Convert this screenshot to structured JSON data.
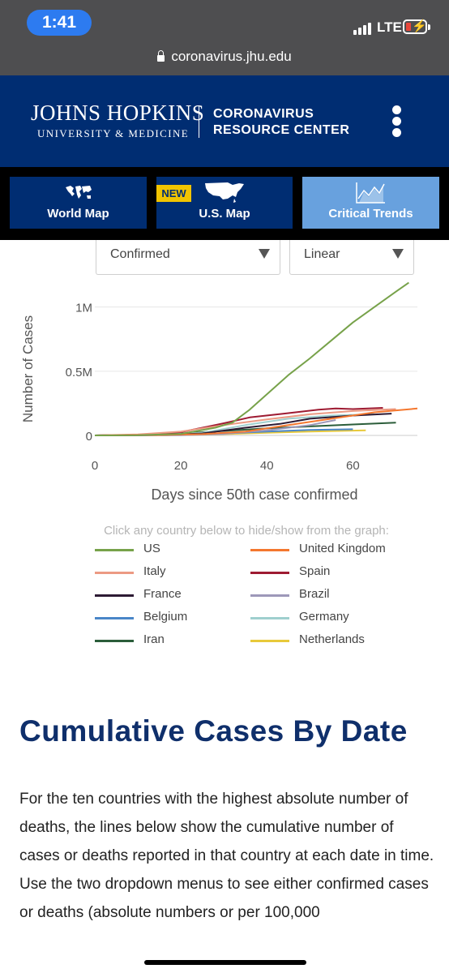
{
  "status_bar": {
    "time": "1:41",
    "network": "LTE",
    "url": "coronavirus.jhu.edu"
  },
  "header": {
    "logo_line1": "JOHNS HOPKINS",
    "logo_line2": "UNIVERSITY & MEDICINE",
    "site_title_line1": "CORONAVIRUS",
    "site_title_line2": "RESOURCE CENTER",
    "menu_icon": "kebab-menu-icon"
  },
  "nav": {
    "tabs": [
      {
        "label": "World Map",
        "icon": "world-map-icon",
        "badge": ""
      },
      {
        "label": "U.S. Map",
        "icon": "us-map-icon",
        "badge": "NEW"
      },
      {
        "label": "Critical Trends",
        "icon": "trend-chart-icon",
        "badge": ""
      }
    ]
  },
  "controls": {
    "metric_selected": "Confirmed",
    "scale_selected": "Linear"
  },
  "chart_data": {
    "type": "line",
    "xlabel": "Days since 50th case confirmed",
    "ylabel": "Number of Cases",
    "x_ticks": [
      "0",
      "20",
      "40",
      "60"
    ],
    "y_ticks": [
      "0",
      "0.5M",
      "1M"
    ],
    "xlim": [
      0,
      75
    ],
    "ylim": [
      0,
      1200000
    ],
    "grid": "horizontal",
    "helper_text": "Click any country below to hide/show from the graph:",
    "series": [
      {
        "name": "US",
        "color": "#77a24a",
        "x": [
          0,
          10,
          20,
          28,
          32,
          36,
          40,
          45,
          50,
          55,
          60,
          65,
          70,
          73
        ],
        "y": [
          0,
          2000,
          12000,
          60000,
          100000,
          200000,
          320000,
          470000,
          600000,
          740000,
          880000,
          1000000,
          1120000,
          1190000
        ]
      },
      {
        "name": "United Kingdom",
        "color": "#f4772e",
        "x": [
          0,
          15,
          25,
          35,
          45,
          55,
          65,
          75
        ],
        "y": [
          0,
          3000,
          10000,
          30000,
          80000,
          130000,
          180000,
          210000
        ]
      },
      {
        "name": "Italy",
        "color": "#ec9a83",
        "x": [
          0,
          10,
          20,
          30,
          40,
          50,
          60,
          70
        ],
        "y": [
          0,
          8000,
          30000,
          80000,
          125000,
          165000,
          190000,
          205000
        ]
      },
      {
        "name": "Spain",
        "color": "#9e1b32",
        "x": [
          0,
          10,
          20,
          30,
          36,
          44,
          52,
          56,
          60,
          67
        ],
        "y": [
          0,
          5000,
          25000,
          95000,
          140000,
          170000,
          200000,
          210000,
          205000,
          215000
        ]
      },
      {
        "name": "France",
        "color": "#2d1b34",
        "x": [
          0,
          15,
          25,
          35,
          43,
          50,
          60,
          69
        ],
        "y": [
          0,
          3000,
          15000,
          60000,
          90000,
          130000,
          155000,
          170000
        ]
      },
      {
        "name": "Brazil",
        "color": "#9d98b9",
        "x": [
          0,
          20,
          30,
          40,
          50,
          56
        ],
        "y": [
          0,
          2000,
          12000,
          40000,
          80000,
          120000
        ]
      },
      {
        "name": "Belgium",
        "color": "#4a86c8",
        "x": [
          0,
          20,
          30,
          40,
          50,
          60
        ],
        "y": [
          0,
          5000,
          15000,
          30000,
          42000,
          48000
        ]
      },
      {
        "name": "Germany",
        "color": "#9fcfce",
        "x": [
          0,
          15,
          25,
          35,
          45,
          55,
          65
        ],
        "y": [
          0,
          5000,
          20000,
          80000,
          130000,
          155000,
          165000
        ]
      },
      {
        "name": "Iran",
        "color": "#2b5d3a",
        "x": [
          0,
          10,
          20,
          30,
          40,
          50,
          60,
          70
        ],
        "y": [
          0,
          5000,
          15000,
          35000,
          55000,
          70000,
          85000,
          100000
        ]
      },
      {
        "name": "Netherlands",
        "color": "#e8c93a",
        "x": [
          0,
          20,
          30,
          40,
          50,
          63
        ],
        "y": [
          0,
          3000,
          10000,
          20000,
          30000,
          40000
        ]
      }
    ]
  },
  "section": {
    "title": "Cumulative Cases By Date",
    "body": "For the ten countries with the highest absolute number of deaths, the lines below show the cumulative number of cases or deaths reported in that country at each date in time. Use the two dropdown menus to see either confirmed cases or deaths (absolute numbers or per 100,000"
  }
}
